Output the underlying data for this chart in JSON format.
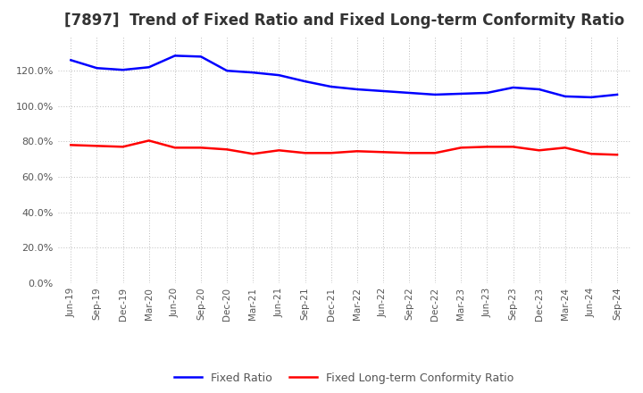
{
  "title": "[7897]  Trend of Fixed Ratio and Fixed Long-term Conformity Ratio",
  "x_labels": [
    "Jun-19",
    "Sep-19",
    "Dec-19",
    "Mar-20",
    "Jun-20",
    "Sep-20",
    "Dec-20",
    "Mar-21",
    "Jun-21",
    "Sep-21",
    "Dec-21",
    "Mar-22",
    "Jun-22",
    "Sep-22",
    "Dec-22",
    "Mar-23",
    "Jun-23",
    "Sep-23",
    "Dec-23",
    "Mar-24",
    "Jun-24",
    "Sep-24"
  ],
  "fixed_ratio": [
    126.0,
    121.5,
    120.5,
    122.0,
    128.5,
    128.0,
    120.0,
    119.0,
    117.5,
    114.0,
    111.0,
    109.5,
    108.5,
    107.5,
    106.5,
    107.0,
    107.5,
    110.5,
    109.5,
    105.5,
    105.0,
    106.5
  ],
  "fixed_lt_ratio": [
    78.0,
    77.5,
    77.0,
    80.5,
    76.5,
    76.5,
    75.5,
    73.0,
    75.0,
    73.5,
    73.5,
    74.5,
    74.0,
    73.5,
    73.5,
    76.5,
    77.0,
    77.0,
    75.0,
    76.5,
    73.0,
    72.5
  ],
  "fixed_ratio_color": "#0000ff",
  "fixed_lt_ratio_color": "#ff0000",
  "ylim": [
    0,
    140
  ],
  "yticks": [
    0,
    20,
    40,
    60,
    80,
    100,
    120
  ],
  "background_color": "#ffffff",
  "grid_color": "#bbbbbb",
  "title_fontsize": 12,
  "legend_fixed": "Fixed Ratio",
  "legend_fixed_lt": "Fixed Long-term Conformity Ratio"
}
